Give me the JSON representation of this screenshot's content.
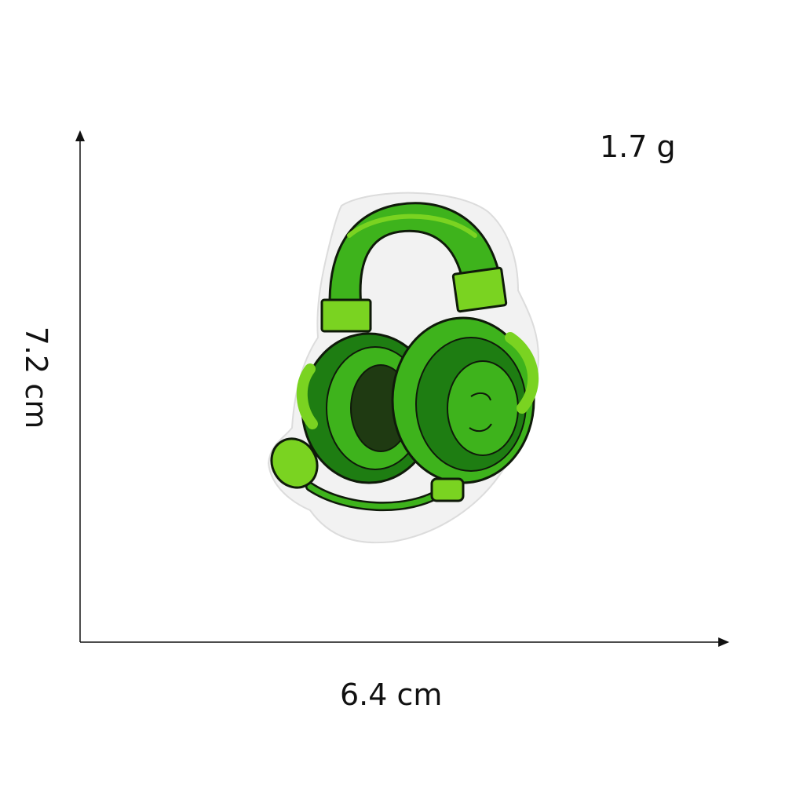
{
  "labels": {
    "weight": "1.7 g",
    "height": "7.2 cm",
    "width": "6.4 cm"
  },
  "colors": {
    "axis": "#111111",
    "felt": "#f2f2f2",
    "stitch_dark": "#1e7d12",
    "stitch_mid": "#3eb31c",
    "stitch_light": "#7ad321",
    "cushion": "#1f3a12",
    "outline": "#0f1a0a"
  },
  "icons": {
    "product": "green-headset-patch-icon"
  }
}
